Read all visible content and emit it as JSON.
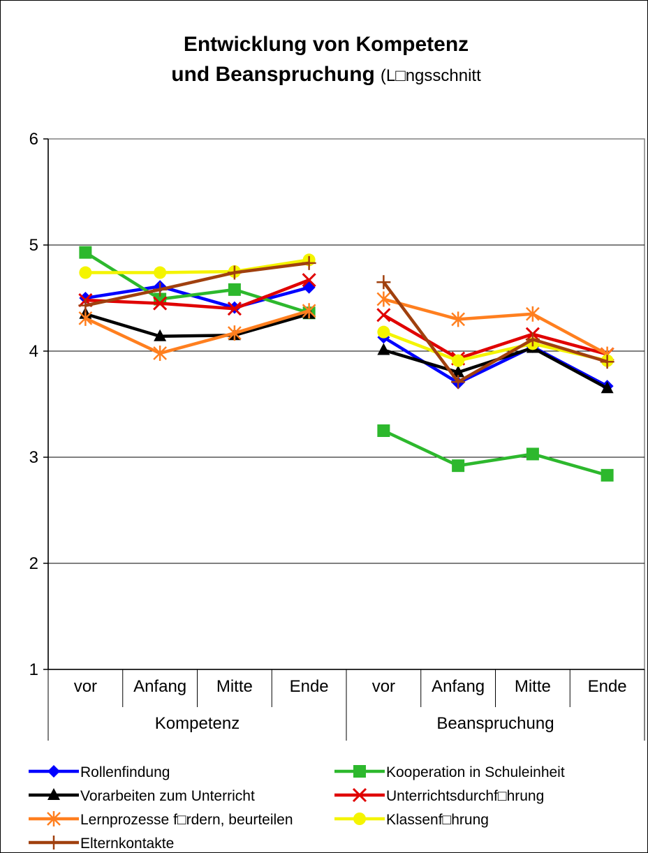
{
  "chart_data": {
    "type": "line",
    "title_line1": "Entwicklung von Kompetenz",
    "title_line2_bold": "und Beanspruchung",
    "title_line2_normal": "(L□ngsschnitt",
    "ylim": [
      1,
      6
    ],
    "y_ticks": [
      "1",
      "2",
      "3",
      "4",
      "5",
      "6"
    ],
    "groups": [
      {
        "label": "Kompetenz",
        "categories": [
          "vor",
          "Anfang",
          "Mitte",
          "Ende"
        ]
      },
      {
        "label": "Beanspruchung",
        "categories": [
          "vor",
          "Anfang",
          "Mitte",
          "Ende"
        ]
      }
    ],
    "grid": true,
    "legend_position": "bottom",
    "series": [
      {
        "name": "Rollenfindung",
        "color": "#0000ff",
        "marker": "diamond",
        "values": [
          [
            4.5,
            4.61,
            4.41,
            4.6
          ],
          [
            4.13,
            3.7,
            4.04,
            3.67
          ]
        ]
      },
      {
        "name": "Kooperation in Schuleinheit",
        "color": "#2db82d",
        "marker": "square",
        "values": [
          [
            4.93,
            4.49,
            4.58,
            4.36
          ],
          [
            3.25,
            2.92,
            3.03,
            2.83
          ]
        ]
      },
      {
        "name": "Vorarbeiten zum Unterricht",
        "color": "#000000",
        "marker": "triangle",
        "values": [
          [
            4.35,
            4.14,
            4.15,
            4.35
          ],
          [
            4.01,
            3.8,
            4.03,
            3.65
          ]
        ]
      },
      {
        "name": "Unterrichtsdurchf□hrung",
        "color": "#e00000",
        "marker": "x",
        "values": [
          [
            4.48,
            4.45,
            4.4,
            4.67
          ],
          [
            4.34,
            3.93,
            4.16,
            3.97
          ]
        ]
      },
      {
        "name": "Lernprozesse f□rdern, beurteilen",
        "color": "#ff7f1f",
        "marker": "star",
        "values": [
          [
            4.31,
            3.98,
            4.17,
            4.38
          ],
          [
            4.49,
            4.3,
            4.35,
            3.97
          ]
        ]
      },
      {
        "name": "Klassenf□hrung",
        "color": "#f4f400",
        "marker": "circle",
        "values": [
          [
            4.74,
            4.74,
            4.75,
            4.86
          ],
          [
            4.18,
            3.91,
            4.07,
            3.91
          ]
        ]
      },
      {
        "name": "Elternkontakte",
        "color": "#a0400e",
        "marker": "plus",
        "values": [
          [
            4.43,
            4.58,
            4.74,
            4.83
          ],
          [
            4.65,
            3.71,
            4.11,
            3.9
          ]
        ]
      }
    ]
  }
}
